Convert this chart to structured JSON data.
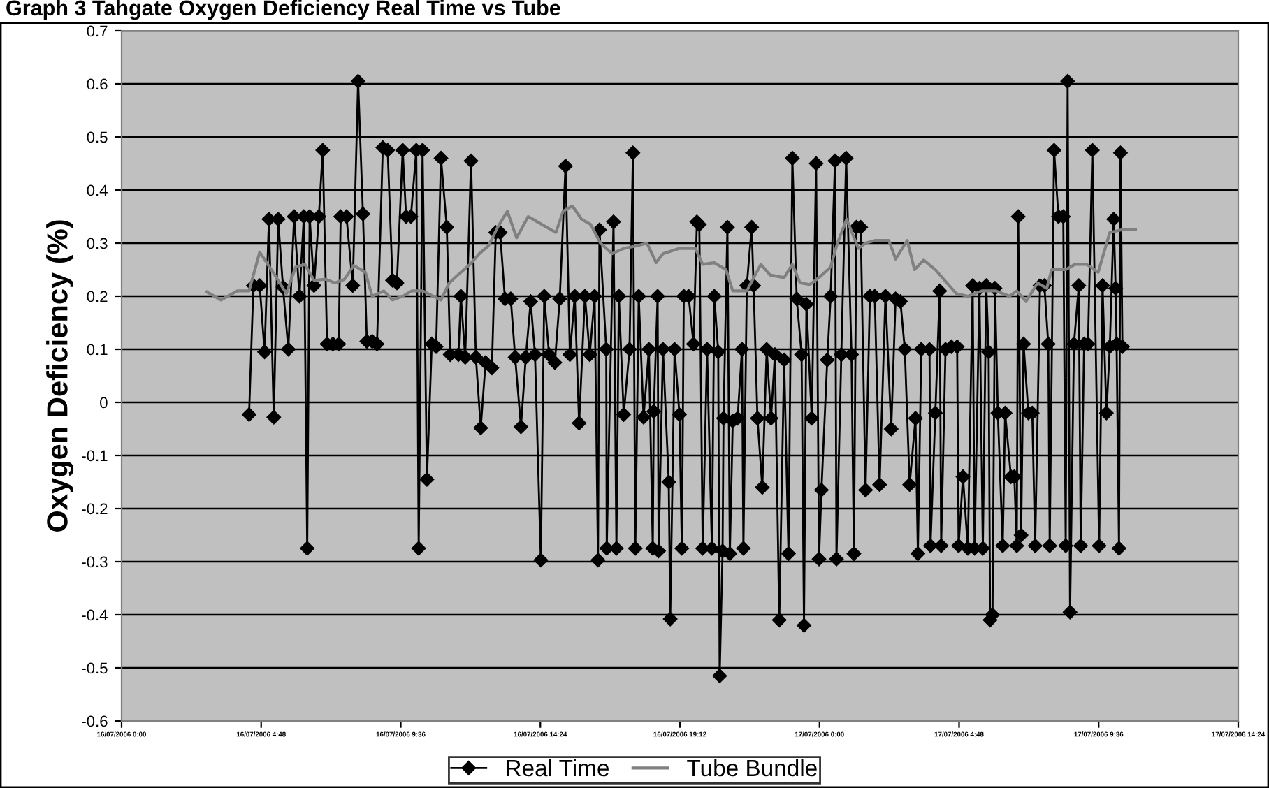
{
  "chart_data": {
    "type": "line",
    "title": "Graph 3 Tahgate Oxygen Deficiency Real Time vs Tube",
    "ylabel": "Oxygen Deficiency (%)",
    "xlim": [
      "2006-07-16T00:00",
      "2006-07-17T14:24"
    ],
    "xticks": [
      {
        "value": "2006-07-16T00:00",
        "label": "16/07/2006 0:00"
      },
      {
        "value": "2006-07-16T04:48",
        "label": "16/07/2006 4:48"
      },
      {
        "value": "2006-07-16T09:36",
        "label": "16/07/2006 9:36"
      },
      {
        "value": "2006-07-16T14:24",
        "label": "16/07/2006 14:24"
      },
      {
        "value": "2006-07-16T19:12",
        "label": "16/07/2006 19:12"
      },
      {
        "value": "2006-07-17T00:00",
        "label": "17/07/2006 0:00"
      },
      {
        "value": "2006-07-17T04:48",
        "label": "17/07/2006 4:48"
      },
      {
        "value": "2006-07-17T09:36",
        "label": "17/07/2006 9:36"
      },
      {
        "value": "2006-07-17T14:24",
        "label": "17/07/2006 14:24"
      }
    ],
    "ylim": [
      -0.6,
      0.7
    ],
    "yticks": [
      -0.6,
      -0.5,
      -0.4,
      -0.3,
      -0.2,
      -0.1,
      0,
      0.1,
      0.2,
      0.3,
      0.4,
      0.5,
      0.6,
      0.7
    ],
    "grid": "y",
    "legend": "bottom",
    "series": [
      {
        "name": "Real Time",
        "color": "#000000",
        "marker": "diamond",
        "x": [
          "2006-07-16T04:23",
          "2006-07-16T04:32",
          "2006-07-16T04:45",
          "2006-07-16T04:55",
          "2006-07-16T05:04",
          "2006-07-16T05:14",
          "2006-07-16T05:23",
          "2006-07-16T05:33",
          "2006-07-16T05:44",
          "2006-07-16T05:56",
          "2006-07-16T06:07",
          "2006-07-16T06:16",
          "2006-07-16T06:23",
          "2006-07-16T06:28",
          "2006-07-16T06:37",
          "2006-07-16T06:47",
          "2006-07-16T06:55",
          "2006-07-16T07:04",
          "2006-07-16T07:16",
          "2006-07-16T07:28",
          "2006-07-16T07:32",
          "2006-07-16T07:44",
          "2006-07-16T07:57",
          "2006-07-16T08:08",
          "2006-07-16T08:18",
          "2006-07-16T08:26",
          "2006-07-16T08:37",
          "2006-07-16T08:47",
          "2006-07-16T08:59",
          "2006-07-16T09:09",
          "2006-07-16T09:19",
          "2006-07-16T09:28",
          "2006-07-16T09:40",
          "2006-07-16T09:47",
          "2006-07-16T09:57",
          "2006-07-16T10:08",
          "2006-07-16T10:13",
          "2006-07-16T10:21",
          "2006-07-16T10:30",
          "2006-07-16T10:40",
          "2006-07-16T10:49",
          "2006-07-16T10:59",
          "2006-07-16T11:11",
          "2006-07-16T11:18",
          "2006-07-16T11:35",
          "2006-07-16T11:40",
          "2006-07-16T11:49",
          "2006-07-16T12:01",
          "2006-07-16T12:11",
          "2006-07-16T12:21",
          "2006-07-16T12:31",
          "2006-07-16T12:44",
          "2006-07-16T12:52",
          "2006-07-16T13:01",
          "2006-07-16T13:11",
          "2006-07-16T13:23",
          "2006-07-16T13:32",
          "2006-07-16T13:44",
          "2006-07-16T13:54",
          "2006-07-16T14:04",
          "2006-07-16T14:13",
          "2006-07-16T14:25",
          "2006-07-16T14:32",
          "2006-07-16T14:42",
          "2006-07-16T14:54",
          "2006-07-16T15:04",
          "2006-07-16T15:16",
          "2006-07-16T15:25",
          "2006-07-16T15:35",
          "2006-07-16T15:44",
          "2006-07-16T15:56",
          "2006-07-16T16:06",
          "2006-07-16T16:16",
          "2006-07-16T16:23",
          "2006-07-16T16:26",
          "2006-07-16T16:40",
          "2006-07-16T16:41",
          "2006-07-16T16:55",
          "2006-07-16T17:01",
          "2006-07-16T17:06",
          "2006-07-16T17:16",
          "2006-07-16T17:28",
          "2006-07-16T17:35",
          "2006-07-16T17:40",
          "2006-07-16T17:47",
          "2006-07-16T17:57",
          "2006-07-16T18:08",
          "2006-07-16T18:16",
          "2006-07-16T18:18",
          "2006-07-16T18:26",
          "2006-07-16T18:28",
          "2006-07-16T18:37",
          "2006-07-16T18:49",
          "2006-07-16T18:52",
          "2006-07-16T19:01",
          "2006-07-16T19:11",
          "2006-07-16T19:16",
          "2006-07-16T19:20",
          "2006-07-16T19:30",
          "2006-07-16T19:40",
          "2006-07-16T19:47",
          "2006-07-16T19:52",
          "2006-07-16T19:59",
          "2006-07-16T20:08",
          "2006-07-16T20:18",
          "2006-07-16T20:23",
          "2006-07-16T20:31",
          "2006-07-16T20:34",
          "2006-07-16T20:40",
          "2006-07-16T20:42",
          "2006-07-16T20:50",
          "2006-07-16T20:55",
          "2006-07-16T21:01",
          "2006-07-16T21:11",
          "2006-07-16T21:20",
          "2006-07-16T21:23",
          "2006-07-16T21:30",
          "2006-07-16T21:40",
          "2006-07-16T21:44",
          "2006-07-16T21:52",
          "2006-07-16T22:02",
          "2006-07-16T22:11",
          "2006-07-16T22:20",
          "2006-07-16T22:28",
          "2006-07-16T22:37",
          "2006-07-16T22:47",
          "2006-07-16T22:56",
          "2006-07-16T23:04",
          "2006-07-16T23:13",
          "2006-07-16T23:23",
          "2006-07-16T23:28",
          "2006-07-16T23:33",
          "2006-07-16T23:44",
          "2006-07-16T23:53",
          "2006-07-16T23:59",
          "2006-07-17T00:04",
          "2006-07-17T00:16",
          "2006-07-17T00:23",
          "2006-07-17T00:32",
          "2006-07-17T00:35",
          "2006-07-17T00:45",
          "2006-07-17T00:55",
          "2006-07-17T01:06",
          "2006-07-17T01:11",
          "2006-07-17T01:16",
          "2006-07-17T01:25",
          "2006-07-17T01:35",
          "2006-07-17T01:44",
          "2006-07-17T01:54",
          "2006-07-17T02:04",
          "2006-07-17T02:16",
          "2006-07-17T02:28",
          "2006-07-17T02:37",
          "2006-07-17T02:47",
          "2006-07-17T02:56",
          "2006-07-17T03:06",
          "2006-07-17T03:18",
          "2006-07-17T03:23",
          "2006-07-17T03:30",
          "2006-07-17T03:47",
          "2006-07-17T03:49",
          "2006-07-17T03:59",
          "2006-07-17T04:08",
          "2006-07-17T04:11",
          "2006-07-17T04:20",
          "2006-07-17T04:32",
          "2006-07-17T04:44",
          "2006-07-17T04:47",
          "2006-07-17T04:56",
          "2006-07-17T05:06",
          "2006-07-17T05:16",
          "2006-07-17T05:20",
          "2006-07-17T05:30",
          "2006-07-17T05:37",
          "2006-07-17T05:44",
          "2006-07-17T05:49",
          "2006-07-17T05:52",
          "2006-07-17T05:57",
          "2006-07-17T06:02",
          "2006-07-17T06:08",
          "2006-07-17T06:18",
          "2006-07-17T06:23",
          "2006-07-17T06:35",
          "2006-07-17T06:42",
          "2006-07-17T06:47",
          "2006-07-17T06:50",
          "2006-07-17T06:56",
          "2006-07-17T07:01",
          "2006-07-17T07:11",
          "2006-07-17T07:19",
          "2006-07-17T07:25",
          "2006-07-17T07:35",
          "2006-07-17T07:44",
          "2006-07-17T07:52",
          "2006-07-17T07:55",
          "2006-07-17T08:04",
          "2006-07-17T08:13",
          "2006-07-17T08:23",
          "2006-07-17T08:28",
          "2006-07-17T08:32",
          "2006-07-17T08:37",
          "2006-07-17T08:45",
          "2006-07-17T08:55",
          "2006-07-17T08:59",
          "2006-07-17T09:06",
          "2006-07-17T09:14",
          "2006-07-17T09:23",
          "2006-07-17T09:37",
          "2006-07-17T09:44",
          "2006-07-17T09:52",
          "2006-07-17T09:59",
          "2006-07-17T10:07",
          "2006-07-17T10:11",
          "2006-07-17T10:13",
          "2006-07-17T10:18",
          "2006-07-17T10:21",
          "2006-07-17T10:25"
        ],
        "values": [
          -0.023,
          0.22,
          0.22,
          0.095,
          0.345,
          -0.028,
          0.345,
          0.217,
          0.1,
          0.35,
          0.2,
          0.35,
          -0.275,
          0.35,
          0.22,
          0.35,
          0.475,
          0.11,
          0.11,
          0.11,
          0.35,
          0.35,
          0.22,
          0.605,
          0.355,
          0.115,
          0.115,
          0.11,
          0.48,
          0.475,
          0.23,
          0.225,
          0.475,
          0.35,
          0.35,
          0.475,
          -0.275,
          0.475,
          -0.145,
          0.11,
          0.105,
          0.46,
          0.33,
          0.09,
          0.09,
          0.2,
          0.085,
          0.455,
          0.085,
          -0.048,
          0.075,
          0.065,
          0.32,
          0.32,
          0.195,
          0.195,
          0.085,
          -0.046,
          0.085,
          0.19,
          0.09,
          -0.297,
          0.2,
          0.09,
          0.075,
          0.195,
          0.445,
          0.09,
          0.2,
          -0.039,
          0.2,
          0.09,
          0.2,
          -0.297,
          0.325,
          0.1,
          -0.275,
          0.34,
          -0.275,
          0.2,
          -0.023,
          0.1,
          0.47,
          -0.275,
          0.2,
          -0.028,
          0.1,
          -0.275,
          -0.017,
          0.2,
          -0.28,
          0.1,
          -0.15,
          -0.408,
          0.1,
          -0.023,
          -0.275,
          0.2,
          0.2,
          0.11,
          0.34,
          0.335,
          -0.275,
          0.1,
          -0.275,
          0.2,
          0.095,
          -0.515,
          -0.28,
          -0.03,
          0.33,
          -0.285,
          -0.035,
          -0.03,
          0.1,
          -0.275,
          0.22,
          0.33,
          0.22,
          -0.03,
          -0.16,
          0.1,
          -0.03,
          0.09,
          -0.41,
          0.08,
          -0.285,
          0.46,
          0.195,
          0.09,
          -0.42,
          0.185,
          -0.03,
          0.45,
          -0.295,
          -0.165,
          0.08,
          0.2,
          0.455,
          -0.295,
          0.09,
          0.46,
          0.09,
          -0.285,
          0.33,
          0.33,
          -0.165,
          0.2,
          0.2,
          -0.155,
          0.2,
          -0.05,
          0.195,
          0.19,
          0.1,
          -0.155,
          -0.03,
          -0.285,
          0.1,
          0.1,
          -0.27,
          -0.02,
          0.21,
          -0.27,
          0.1,
          0.105,
          0.105,
          -0.27,
          -0.14,
          -0.275,
          0.22,
          -0.275,
          0.215,
          -0.275,
          0.22,
          0.095,
          -0.41,
          -0.4,
          0.215,
          -0.02,
          -0.27,
          -0.02,
          -0.14,
          -0.14,
          -0.27,
          0.35,
          -0.25,
          0.11,
          -0.02,
          -0.02,
          -0.27,
          0.22,
          0.22,
          0.11,
          -0.27,
          0.475,
          0.35,
          0.35,
          -0.27,
          0.605,
          -0.395,
          0.11,
          0.22,
          -0.27,
          0.11,
          0.11,
          0.475,
          -0.27,
          0.22,
          -0.02,
          0.105,
          0.345,
          0.215,
          0.11,
          -0.275,
          0.47,
          0.105
        ]
      },
      {
        "name": "Tube Bundle",
        "color": "#808080",
        "marker": "none",
        "x": [
          "2006-07-16T02:56",
          "2006-07-16T03:25",
          "2006-07-16T03:59",
          "2006-07-16T04:23",
          "2006-07-16T04:45",
          "2006-07-16T05:16",
          "2006-07-16T05:40",
          "2006-07-16T05:59",
          "2006-07-16T06:18",
          "2006-07-16T06:37",
          "2006-07-16T07:01",
          "2006-07-16T07:20",
          "2006-07-16T07:40",
          "2006-07-16T07:59",
          "2006-07-16T08:23",
          "2006-07-16T08:37",
          "2006-07-16T09:01",
          "2006-07-16T09:19",
          "2006-07-16T09:40",
          "2006-07-16T09:59",
          "2006-07-16T10:21",
          "2006-07-16T10:59",
          "2006-07-16T11:16",
          "2006-07-16T11:40",
          "2006-07-16T11:59",
          "2006-07-16T12:18",
          "2006-07-16T12:37",
          "2006-07-16T12:56",
          "2006-07-16T13:16",
          "2006-07-16T13:35",
          "2006-07-16T13:59",
          "2006-07-16T14:18",
          "2006-07-16T14:37",
          "2006-07-16T14:56",
          "2006-07-16T15:11",
          "2006-07-16T15:30",
          "2006-07-16T15:49",
          "2006-07-16T16:08",
          "2006-07-16T16:28",
          "2006-07-16T16:52",
          "2006-07-16T17:16",
          "2006-07-16T17:44",
          "2006-07-16T18:04",
          "2006-07-16T18:23",
          "2006-07-16T18:37",
          "2006-07-16T19:11",
          "2006-07-16T19:44",
          "2006-07-16T19:59",
          "2006-07-16T20:23",
          "2006-07-16T20:47",
          "2006-07-16T21:01",
          "2006-07-16T21:30",
          "2006-07-16T21:59",
          "2006-07-16T22:18",
          "2006-07-16T22:47",
          "2006-07-16T23:04",
          "2006-07-16T23:20",
          "2006-07-16T23:40",
          "2006-07-16T23:59",
          "2006-07-17T00:23",
          "2006-07-17T00:37",
          "2006-07-17T00:56",
          "2006-07-17T01:20",
          "2006-07-17T01:35",
          "2006-07-17T01:54",
          "2006-07-17T02:23",
          "2006-07-17T02:37",
          "2006-07-17T03:01",
          "2006-07-17T03:16",
          "2006-07-17T03:35",
          "2006-07-17T03:59",
          "2006-07-17T04:42",
          "2006-07-17T05:06",
          "2006-07-17T05:35",
          "2006-07-17T06:04",
          "2006-07-17T06:32",
          "2006-07-17T06:47",
          "2006-07-17T07:06",
          "2006-07-17T07:30",
          "2006-07-17T07:49",
          "2006-07-17T07:59",
          "2006-07-17T08:28",
          "2006-07-17T08:47",
          "2006-07-17T09:11",
          "2006-07-17T09:35",
          "2006-07-17T09:59",
          "2006-07-17T10:23",
          "2006-07-17T10:52"
        ],
        "values": [
          0.208,
          0.193,
          0.21,
          0.21,
          0.283,
          0.24,
          0.205,
          0.255,
          0.26,
          0.23,
          0.232,
          0.225,
          0.232,
          0.258,
          0.245,
          0.2,
          0.21,
          0.193,
          0.2,
          0.21,
          0.21,
          0.193,
          0.225,
          0.245,
          0.26,
          0.28,
          0.295,
          0.33,
          0.36,
          0.31,
          0.35,
          0.34,
          0.33,
          0.32,
          0.36,
          0.37,
          0.345,
          0.335,
          0.3,
          0.28,
          0.29,
          0.295,
          0.3,
          0.263,
          0.28,
          0.29,
          0.29,
          0.26,
          0.263,
          0.25,
          0.21,
          0.21,
          0.26,
          0.24,
          0.235,
          0.26,
          0.225,
          0.222,
          0.235,
          0.255,
          0.3,
          0.345,
          0.29,
          0.3,
          0.305,
          0.305,
          0.27,
          0.305,
          0.25,
          0.268,
          0.25,
          0.205,
          0.2,
          0.21,
          0.21,
          0.2,
          0.21,
          0.19,
          0.225,
          0.215,
          0.25,
          0.25,
          0.26,
          0.26,
          0.245,
          0.32,
          0.325,
          0.325
        ]
      }
    ]
  }
}
